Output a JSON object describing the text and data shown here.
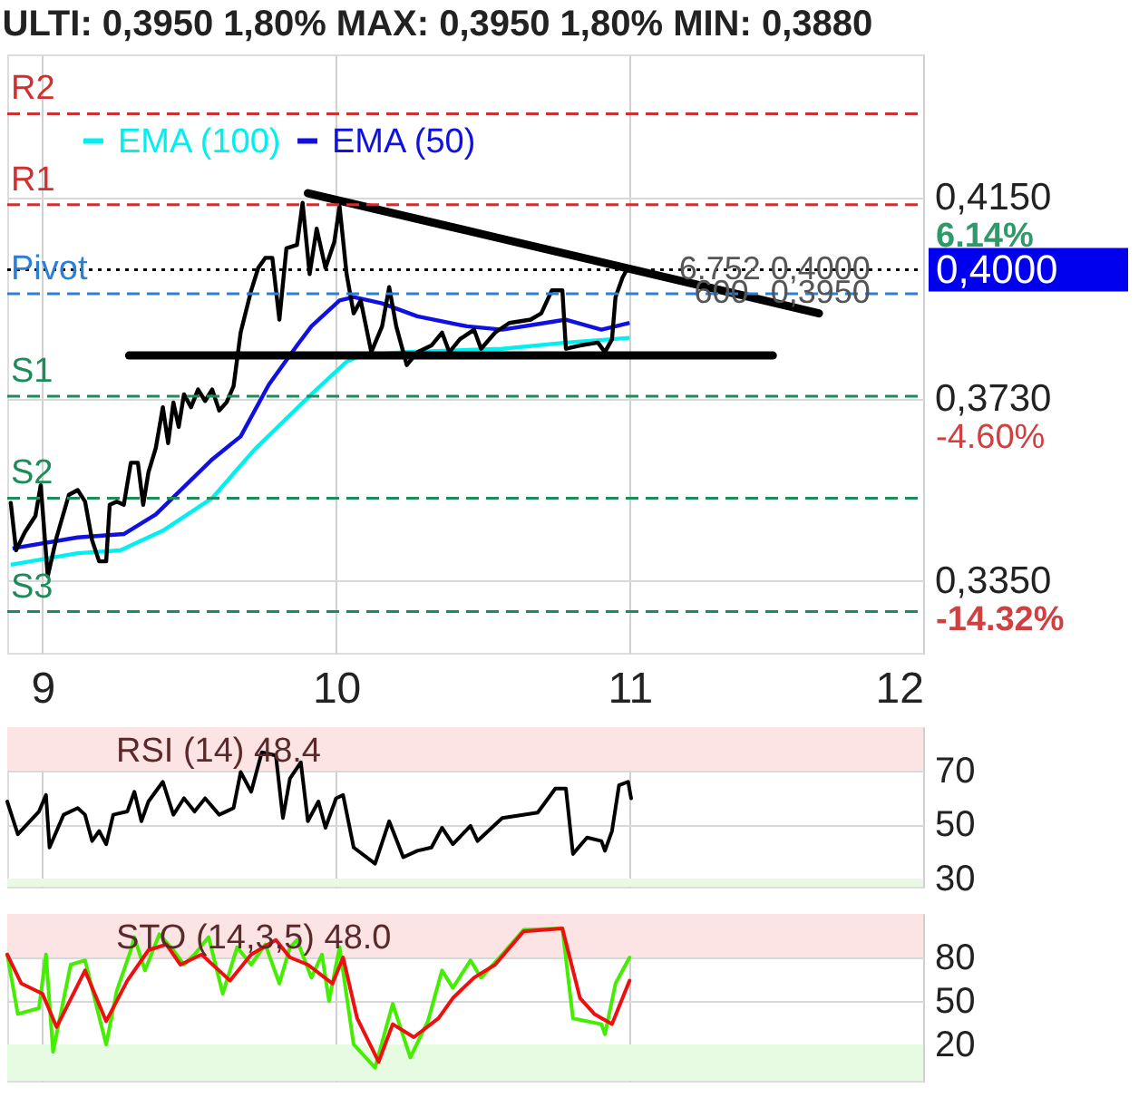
{
  "chart_data": [
    {
      "type": "line",
      "title": "ULTI: 0,3950 1,80% MAX: 0,3950 1,80% MIN: 0,3880",
      "xlim": [
        8.88,
        12
      ],
      "xticks": [
        9,
        10,
        11,
        12
      ],
      "ylim": [
        0.32,
        0.445
      ],
      "yticks": [
        {
          "value": 0.415,
          "label": "0,4150"
        },
        {
          "value": 0.373,
          "label": "0,3730"
        },
        {
          "value": 0.335,
          "label": "0,3350"
        }
      ],
      "grid": true,
      "legend": "top left",
      "series": [
        {
          "color": "#000000",
          "x": [
            8.892,
            8.91,
            8.94,
            8.976,
            8.994,
            9.018,
            9.048,
            9.09,
            9.12,
            9.145,
            9.169,
            9.193,
            9.217,
            9.229,
            9.253,
            9.277,
            9.301,
            9.325,
            9.343,
            9.361,
            9.386,
            9.41,
            9.428,
            9.446,
            9.464,
            9.482,
            9.506,
            9.53,
            9.554,
            9.578,
            9.602,
            9.627,
            9.651,
            9.675,
            9.711,
            9.735,
            9.759,
            9.783,
            9.807,
            9.831,
            9.867,
            9.886,
            9.91,
            9.934,
            9.964,
            9.994,
            10.012,
            10.036,
            10.06,
            10.084,
            10.12,
            10.157,
            10.181,
            10.205,
            10.241,
            10.277,
            10.325,
            10.361,
            10.386,
            10.422,
            10.47,
            10.494,
            10.542,
            10.59,
            10.663,
            10.699,
            10.735,
            10.771,
            10.783,
            10.831,
            10.892,
            10.916,
            10.94,
            10.952,
            10.976,
            10.994
          ],
          "values": [
            0.3513,
            0.3414,
            0.3452,
            0.3486,
            0.355,
            0.336,
            0.3441,
            0.353,
            0.354,
            0.3516,
            0.3435,
            0.3391,
            0.3391,
            0.3509,
            0.3516,
            0.3509,
            0.3597,
            0.3597,
            0.3509,
            0.3577,
            0.3628,
            0.3713,
            0.3638,
            0.3723,
            0.3672,
            0.374,
            0.3713,
            0.375,
            0.3726,
            0.375,
            0.3706,
            0.3723,
            0.3757,
            0.3869,
            0.3957,
            0.4004,
            0.4025,
            0.4025,
            0.3896,
            0.4045,
            0.4052,
            0.414,
            0.3991,
            0.4086,
            0.4004,
            0.4058,
            0.4133,
            0.3991,
            0.3909,
            0.3936,
            0.3828,
            0.3882,
            0.3964,
            0.3882,
            0.3801,
            0.3828,
            0.3842,
            0.3869,
            0.3828,
            0.3855,
            0.3875,
            0.3835,
            0.3869,
            0.3889,
            0.3896,
            0.3909,
            0.3957,
            0.3957,
            0.3835,
            0.3842,
            0.3848,
            0.3828,
            0.3855,
            0.3943,
            0.3984,
            0.4004
          ]
        },
        {
          "name": "EMA (100)",
          "color": "#00f0f0",
          "x": [
            8.892,
            9.12,
            9.265,
            9.41,
            9.578,
            9.723,
            9.916,
            10.036,
            10.084,
            10.229,
            10.566,
            10.783,
            11.0
          ],
          "values": [
            0.3384,
            0.3408,
            0.3414,
            0.3455,
            0.3523,
            0.3625,
            0.374,
            0.3808,
            0.3821,
            0.3828,
            0.3835,
            0.3848,
            0.3858
          ]
        },
        {
          "name": "EMA (50)",
          "color": "#1010e0",
          "x": [
            8.898,
            9.12,
            9.277,
            9.386,
            9.578,
            9.675,
            9.771,
            9.867,
            9.916,
            10.012,
            10.06,
            10.157,
            10.277,
            10.446,
            10.566,
            10.711,
            10.783,
            10.904,
            11.0
          ],
          "values": [
            0.3418,
            0.3441,
            0.3448,
            0.3489,
            0.3604,
            0.3652,
            0.376,
            0.3842,
            0.3882,
            0.3936,
            0.3943,
            0.393,
            0.3903,
            0.3882,
            0.3875,
            0.3889,
            0.3896,
            0.3875,
            0.3889
          ]
        },
        {
          "color": "#000000",
          "x": [
            9.904,
            11.645
          ],
          "values": [
            0.416,
            0.3909
          ]
        },
        {
          "color": "#000000",
          "x": [
            9.295,
            11.488
          ],
          "values": [
            0.3821,
            0.3821
          ]
        }
      ],
      "ref_lines": [
        {
          "axis": "y",
          "value": 0.4326,
          "label": "R2",
          "color": "#d03030",
          "line_style": "dashed"
        },
        {
          "axis": "y",
          "value": 0.4136,
          "label": "R1",
          "color": "#d03030",
          "line_style": "dashed"
        },
        {
          "axis": "y",
          "value": 0.4,
          "label": "0,4000",
          "color": "#000000",
          "line_style": "dotted"
        },
        {
          "axis": "y",
          "value": 0.395,
          "label": "Pivot",
          "color": "#2a7fd8",
          "line_style": "dashed"
        },
        {
          "axis": "y",
          "value": 0.3736,
          "label": "S1",
          "color": "#1e8c5a",
          "line_style": "dashed"
        },
        {
          "axis": "y",
          "value": 0.3523,
          "label": "S2",
          "color": "#1e8c5a",
          "line_style": "dashed"
        },
        {
          "axis": "y",
          "value": 0.3286,
          "label": "S3",
          "color": "#1e8c5a",
          "line_style": "dashed"
        }
      ],
      "annotations": [
        "6.14%",
        "-4.60%",
        "-14.32%",
        {
          "text": "6.752",
          "x": 11.307,
          "y": 0.4
        },
        {
          "text": "600",
          "x": 11.313,
          "y": 0.395
        },
        {
          "text": "0,4000",
          "x": 11.65,
          "y": 0.4
        },
        {
          "text": "0,3950",
          "x": 11.65,
          "y": 0.395
        }
      ]
    },
    {
      "type": "line",
      "title": "RSI (14) 48.4",
      "xlim": [
        8.88,
        12
      ],
      "xticks": [
        9,
        10,
        11,
        12
      ],
      "tick_labels": "y",
      "ylim": [
        27,
        86
      ],
      "yticks": [
        30,
        50,
        70
      ],
      "grid": true,
      "bands": [
        {
          "axis": "y",
          "from": 70,
          "to": 86,
          "color": "#fde4e4"
        },
        {
          "axis": "y",
          "from": 27,
          "to": 30,
          "color": "#e6fbe2"
        }
      ],
      "series": [
        {
          "color": "#000000",
          "x": [
            8.88,
            8.916,
            8.988,
            9.012,
            9.024,
            9.072,
            9.12,
            9.145,
            9.169,
            9.193,
            9.217,
            9.241,
            9.289,
            9.313,
            9.337,
            9.361,
            9.41,
            9.446,
            9.482,
            9.518,
            9.554,
            9.602,
            9.651,
            9.675,
            9.711,
            9.747,
            9.795,
            9.819,
            9.843,
            9.88,
            9.904,
            9.94,
            9.964,
            10.0,
            10.024,
            10.06,
            10.133,
            10.181,
            10.229,
            10.277,
            10.325,
            10.361,
            10.398,
            10.458,
            10.482,
            10.566,
            10.687,
            10.747,
            10.783,
            10.807,
            10.855,
            10.904,
            10.916,
            10.94,
            10.964,
            10.995,
            11.005
          ],
          "values": [
            58.5,
            46.4,
            54.8,
            60.9,
            41.5,
            53.6,
            56.1,
            53.6,
            43.9,
            47.6,
            42.7,
            53.6,
            54.8,
            62.1,
            51.2,
            58.5,
            65.8,
            53.6,
            59.7,
            54.8,
            59.7,
            53.6,
            56.1,
            69.4,
            62.1,
            76.7,
            75.5,
            52.4,
            67.0,
            73.0,
            51.2,
            58.5,
            48.8,
            59.7,
            60.9,
            41.5,
            35.5,
            51.2,
            37.9,
            40.3,
            41.5,
            48.8,
            42.7,
            49.5,
            43.9,
            52.4,
            54.4,
            63.3,
            63.3,
            39.1,
            45.2,
            43.9,
            40.3,
            47.6,
            64.5,
            65.8,
            59.7
          ]
        }
      ]
    },
    {
      "type": "line",
      "title": "STO (14,3,5) 48.0",
      "xlim": [
        8.88,
        12
      ],
      "xticks": [
        9,
        10,
        11,
        12
      ],
      "tick_labels": "y",
      "ylim": [
        -5,
        110
      ],
      "yticks": [
        20,
        50,
        80
      ],
      "grid": true,
      "bands": [
        {
          "axis": "y",
          "from": 80,
          "to": 110,
          "color": "#fde4e4"
        },
        {
          "axis": "y",
          "from": -5,
          "to": 20,
          "color": "#e6fbe2"
        }
      ],
      "series": [
        {
          "color": "#44ee00",
          "x": [
            8.88,
            8.916,
            8.988,
            9.012,
            9.036,
            9.096,
            9.145,
            9.217,
            9.253,
            9.301,
            9.313,
            9.349,
            9.398,
            9.446,
            9.482,
            9.518,
            9.566,
            9.614,
            9.663,
            9.711,
            9.759,
            9.807,
            9.843,
            9.867,
            9.916,
            9.952,
            9.976,
            10.012,
            10.06,
            10.133,
            10.193,
            10.253,
            10.313,
            10.361,
            10.398,
            10.458,
            10.494,
            10.566,
            10.639,
            10.771,
            10.807,
            10.904,
            10.916,
            10.952,
            11.0
          ],
          "values": [
            82,
            41,
            45,
            82,
            15,
            75,
            78,
            20,
            57,
            85,
            94,
            71,
            96,
            85,
            75,
            82,
            94,
            55,
            87,
            75,
            89,
            62,
            87,
            92,
            66,
            82,
            50,
            87,
            20,
            4,
            48,
            11,
            36,
            71,
            59,
            78,
            66,
            82,
            99,
            100,
            38,
            34,
            27,
            62,
            80
          ]
        },
        {
          "color": "#ee1010",
          "x": [
            8.88,
            8.928,
            9.0,
            9.048,
            9.145,
            9.217,
            9.289,
            9.361,
            9.422,
            9.47,
            9.542,
            9.639,
            9.711,
            9.795,
            9.843,
            9.904,
            9.988,
            10.024,
            10.072,
            10.145,
            10.193,
            10.265,
            10.349,
            10.398,
            10.47,
            10.542,
            10.639,
            10.771,
            10.831,
            10.88,
            10.94,
            11.0
          ],
          "values": [
            82,
            62,
            55,
            32,
            71,
            36,
            64,
            85,
            89,
            75,
            82,
            64,
            82,
            92,
            80,
            75,
            62,
            80,
            38,
            8,
            34,
            25,
            38,
            52,
            66,
            75,
            98,
            100,
            52,
            41,
            34,
            64
          ]
        }
      ]
    }
  ]
}
